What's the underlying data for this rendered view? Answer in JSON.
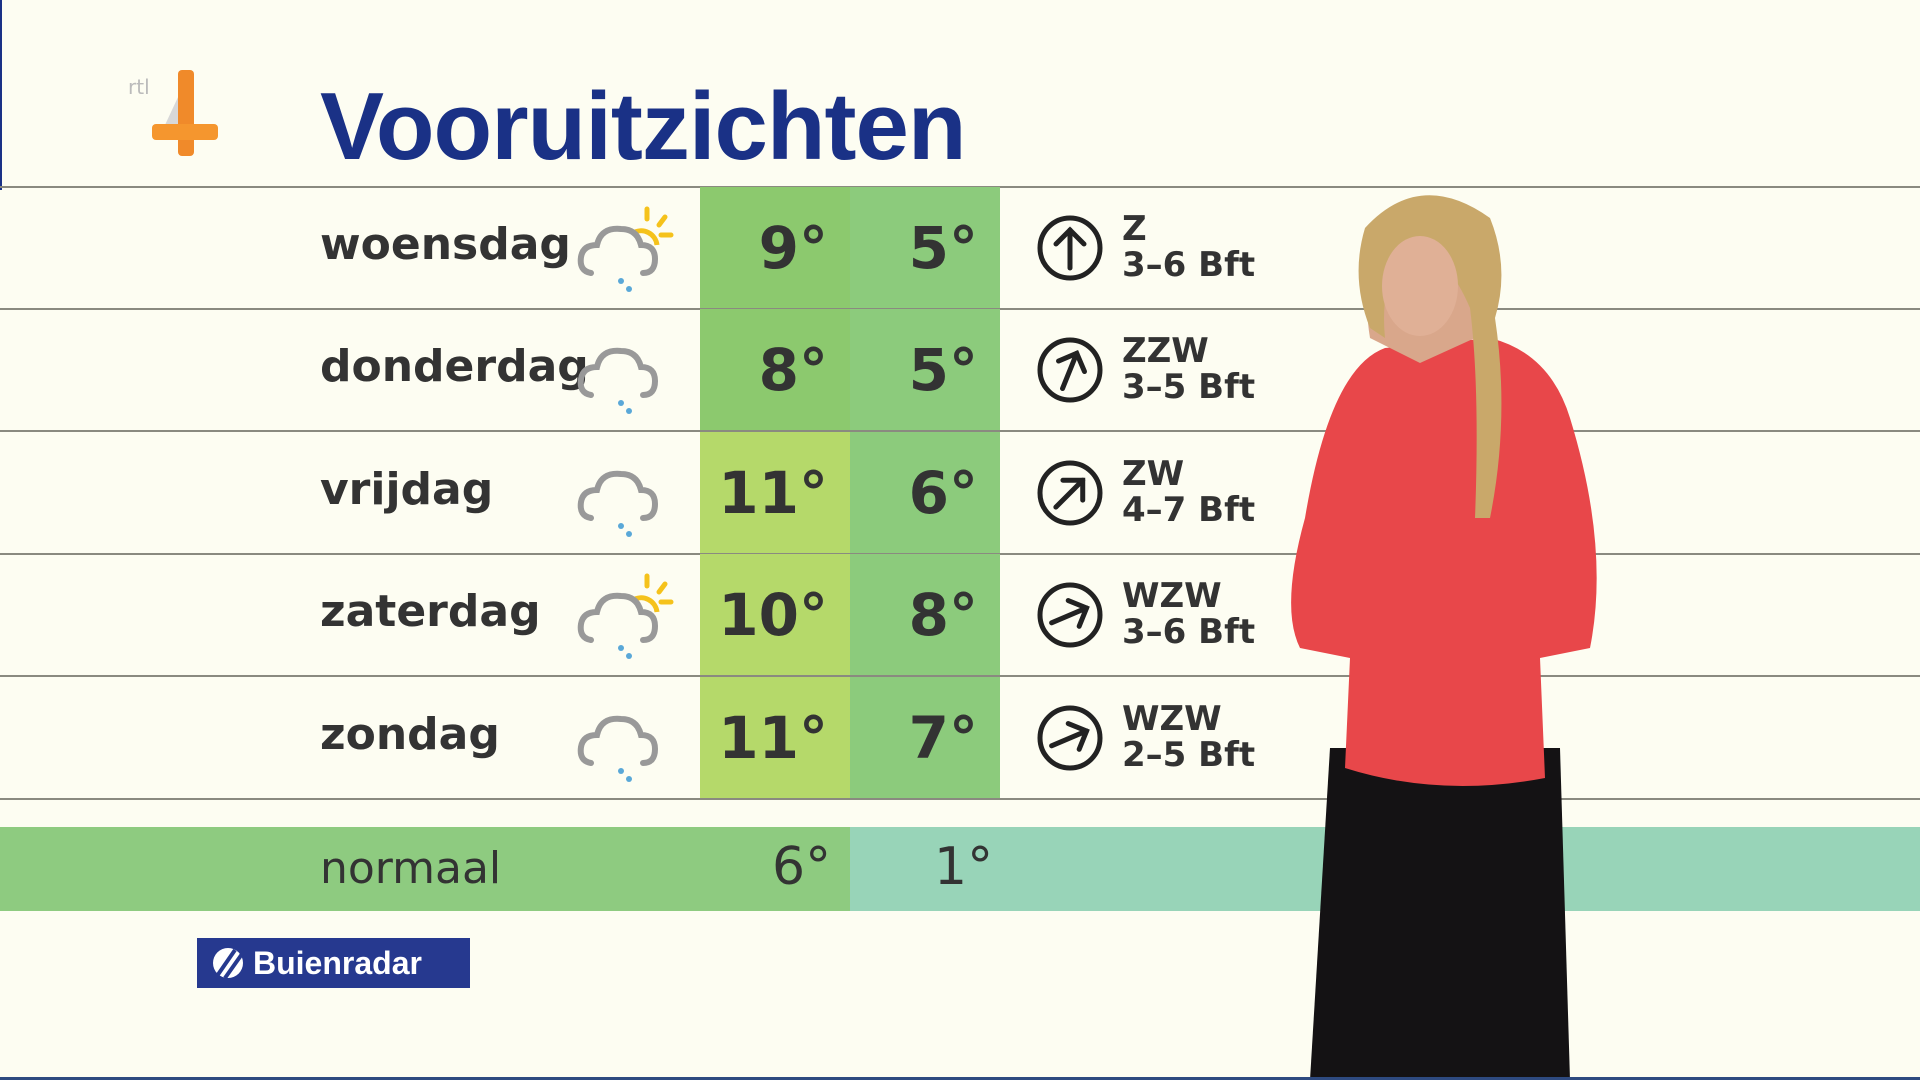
{
  "channel_logo": "rtl 4",
  "title": "Vooruitzichten",
  "colors": {
    "title": "#1a3186",
    "high_warm": "#b5d96a",
    "high": "#8cc96e",
    "low": "#8ccb7c",
    "normal_high": "#8ecb80",
    "normal_low": "#98d4b8"
  },
  "days": [
    {
      "day": "woensdag",
      "icon": "sun-cloud-rain-icon",
      "high": "9°",
      "low": "5°",
      "wind_dir": "Z",
      "wind_force": "3–6 Bft",
      "wind_arrow_deg": 0,
      "warm": false
    },
    {
      "day": "donderdag",
      "icon": "cloud-rain-icon",
      "high": "8°",
      "low": "5°",
      "wind_dir": "ZZW",
      "wind_force": "3–5 Bft",
      "wind_arrow_deg": 22,
      "warm": false
    },
    {
      "day": "vrijdag",
      "icon": "cloud-rain-icon",
      "high": "11°",
      "low": "6°",
      "wind_dir": "ZW",
      "wind_force": "4–7 Bft",
      "wind_arrow_deg": 45,
      "warm": true
    },
    {
      "day": "zaterdag",
      "icon": "sun-cloud-rain-icon",
      "high": "10°",
      "low": "8°",
      "wind_dir": "WZW",
      "wind_force": "3–6 Bft",
      "wind_arrow_deg": 67,
      "warm": true
    },
    {
      "day": "zondag",
      "icon": "cloud-rain-icon",
      "high": "11°",
      "low": "7°",
      "wind_dir": "WZW",
      "wind_force": "2–5 Bft",
      "wind_arrow_deg": 67,
      "warm": true
    }
  ],
  "normal": {
    "label": "normaal",
    "high": "6°",
    "low": "1°"
  },
  "sponsor": "Buienradar"
}
